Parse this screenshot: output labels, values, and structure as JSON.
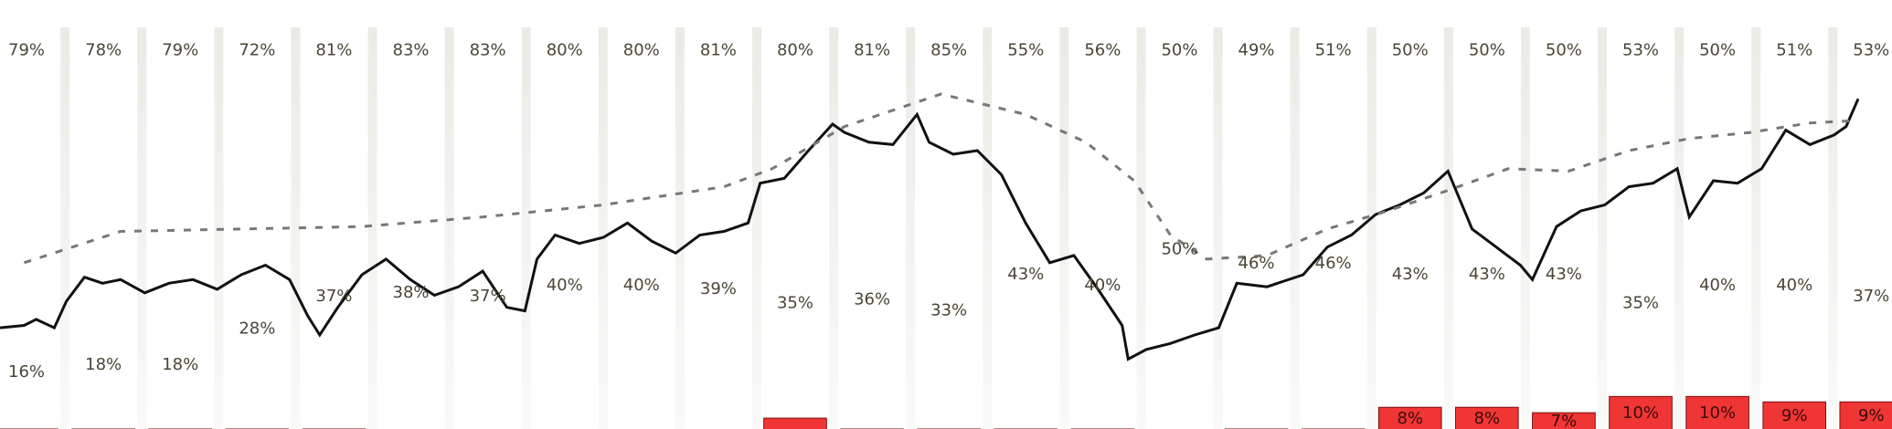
{
  "chart_data": {
    "type": "line",
    "top_row": {
      "values": [
        79,
        78,
        79,
        72,
        81,
        83,
        83,
        80,
        80,
        81,
        80,
        81,
        85,
        55,
        56,
        50,
        49,
        51,
        50,
        50,
        50,
        53,
        50,
        51,
        53
      ],
      "value_labels": [
        "79%",
        "78%",
        "79%",
        "72%",
        "81%",
        "83%",
        "83%",
        "80%",
        "80%",
        "81%",
        "80%",
        "81%",
        "85%",
        "55%",
        "56%",
        "50%",
        "49%",
        "51%",
        "50%",
        "50%",
        "50%",
        "53%",
        "50%",
        "51%",
        "53%"
      ]
    },
    "middle_row": {
      "values": [
        16,
        18,
        18,
        28,
        37,
        38,
        37,
        40,
        40,
        39,
        35,
        36,
        33,
        43,
        40,
        50,
        46,
        46,
        43,
        43,
        43,
        35,
        40,
        40,
        37
      ],
      "value_labels": [
        "16%",
        "18%",
        "18%",
        "28%",
        "37%",
        "38%",
        "37%",
        "40%",
        "40%",
        "39%",
        "35%",
        "36%",
        "33%",
        "43%",
        "40%",
        "50%",
        "46%",
        "46%",
        "43%",
        "43%",
        "43%",
        "35%",
        "40%",
        "40%",
        "37%"
      ]
    },
    "bottom_bars": {
      "color": "#f03535",
      "values": [
        4,
        4,
        4,
        4,
        4,
        null,
        null,
        null,
        null,
        null,
        6,
        4,
        4,
        4,
        4,
        null,
        4,
        4,
        8,
        8,
        7,
        10,
        10,
        9,
        9
      ],
      "value_labels": [
        null,
        null,
        null,
        null,
        null,
        null,
        null,
        null,
        null,
        null,
        null,
        null,
        null,
        null,
        null,
        null,
        null,
        null,
        "8%",
        "8%",
        "7%",
        "10%",
        "10%",
        "9%",
        "9%"
      ]
    },
    "series": [
      {
        "color": "#111111",
        "dashed": false,
        "x": [
          0,
          20,
          30,
          45,
          55,
          70,
          85,
          100,
          120,
          140,
          160,
          180,
          200,
          220,
          240,
          255,
          265,
          280,
          300,
          320,
          340,
          360,
          380,
          400,
          420,
          435,
          445,
          460,
          480,
          500,
          520,
          540,
          560,
          580,
          600,
          620,
          630,
          650,
          670,
          690,
          700,
          720,
          740,
          760,
          770,
          790,
          810,
          830,
          840,
          850,
          870,
          890,
          910,
          930,
          935,
          950,
          970,
          990,
          1010,
          1025,
          1050,
          1080,
          1100,
          1120,
          1140,
          1160,
          1180,
          1200,
          1220,
          1240,
          1260,
          1270,
          1290,
          1310,
          1330,
          1350,
          1370,
          1390,
          1400,
          1420,
          1440,
          1460,
          1480,
          1500,
          1520,
          1530,
          1540
        ],
        "values": [
          84,
          86,
          91,
          84,
          106,
          126,
          121,
          124,
          113,
          121,
          124,
          116,
          128,
          136,
          124,
          94,
          78,
          101,
          128,
          141,
          124,
          111,
          118,
          131,
          101,
          98,
          141,
          161,
          154,
          159,
          171,
          156,
          146,
          161,
          164,
          171,
          204,
          208,
          231,
          253,
          246,
          238,
          236,
          261,
          238,
          228,
          231,
          211,
          191,
          171,
          138,
          144,
          116,
          86,
          58,
          66,
          71,
          78,
          84,
          121,
          118,
          128,
          151,
          161,
          178,
          186,
          196,
          214,
          166,
          151,
          136,
          124,
          168,
          181,
          186,
          201,
          204,
          216,
          176,
          206,
          204,
          216,
          248,
          236,
          244,
          251,
          274
        ]
      },
      {
        "color": "#777777",
        "dashed": true,
        "x": [
          20,
          100,
          200,
          300,
          400,
          500,
          600,
          640,
          700,
          780,
          850,
          900,
          940,
          970,
          1000,
          1050,
          1100,
          1150,
          1200,
          1250,
          1300,
          1350,
          1400,
          1450,
          1500,
          1540
        ],
        "values": [
          138,
          164,
          166,
          168,
          176,
          186,
          201,
          216,
          251,
          278,
          261,
          238,
          206,
          161,
          141,
          144,
          166,
          181,
          198,
          216,
          214,
          231,
          241,
          246,
          254,
          256
        ]
      }
    ]
  }
}
